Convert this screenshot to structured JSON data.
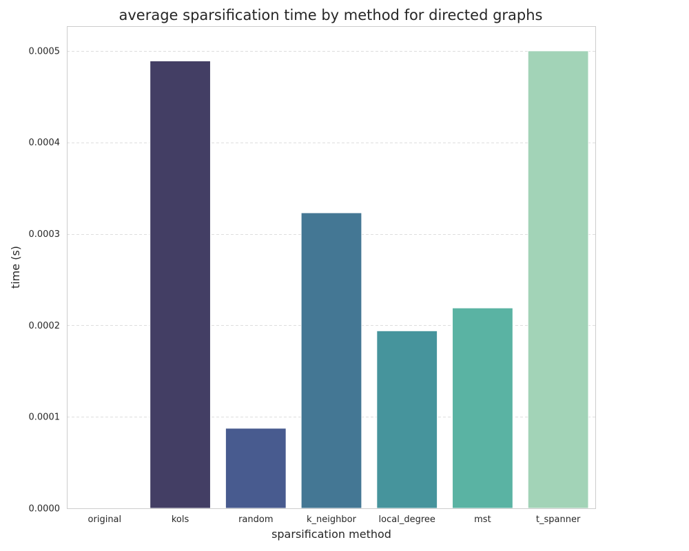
{
  "chart_data": {
    "type": "bar",
    "title": "average sparsification time by method for directed graphs",
    "xlabel": "sparsification method",
    "ylabel": "time (s)",
    "categories": [
      "original",
      "kols",
      "random",
      "k_neighbor",
      "local_degree",
      "mst",
      "t_spanner"
    ],
    "values": [
      0.0,
      0.000489,
      8.75e-05,
      0.000323,
      0.000194,
      0.000219,
      0.0005
    ],
    "colors": [
      "#2e2340",
      "#433e64",
      "#485b8f",
      "#447794",
      "#46949c",
      "#5ab3a3",
      "#a2d3b7"
    ],
    "ylim": [
      0,
      0.000527
    ],
    "yticks": [
      0,
      0.0001,
      0.0002,
      0.0003,
      0.0004,
      0.0005
    ],
    "ytick_labels": [
      "0.0000",
      "0.0001",
      "0.0002",
      "0.0003",
      "0.0004",
      "0.0005"
    ],
    "grid": "y-dashed",
    "legend": "none"
  }
}
